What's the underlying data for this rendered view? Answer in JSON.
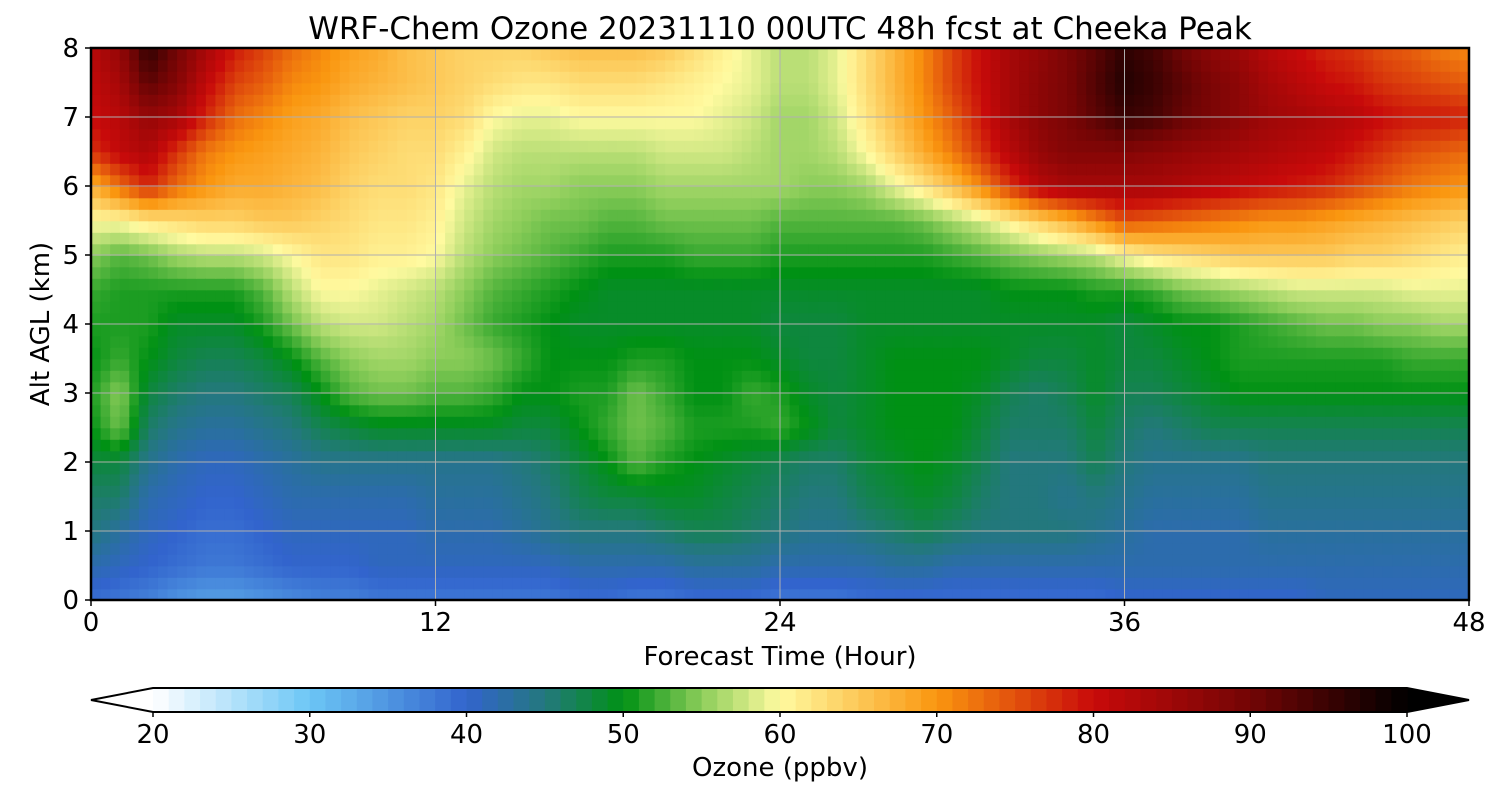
{
  "chart_data": {
    "type": "heatmap",
    "title": "WRF-Chem Ozone  20231110 00UTC 48h fcst at Cheeka Peak",
    "xlabel": "Forecast Time (Hour)",
    "ylabel": "Alt AGL (km)",
    "xlim": [
      0,
      48
    ],
    "ylim": [
      0,
      8
    ],
    "x_ticks": [
      "0",
      "12",
      "24",
      "36",
      "48"
    ],
    "y_ticks": [
      "0",
      "1",
      "2",
      "3",
      "4",
      "5",
      "6",
      "7",
      "8"
    ],
    "grid": true,
    "colorbar": {
      "label": "Ozone  (ppbv)",
      "range": [
        20,
        100
      ],
      "ticks": [
        "20",
        "30",
        "40",
        "50",
        "60",
        "70",
        "80",
        "90",
        "100"
      ],
      "extend": "both"
    },
    "x": [
      0,
      1,
      2,
      3,
      4,
      5,
      6,
      7,
      8,
      9,
      10,
      11,
      12,
      13,
      14,
      15,
      16,
      17,
      18,
      19,
      20,
      21,
      22,
      23,
      24,
      25,
      26,
      27,
      28,
      29,
      30,
      31,
      32,
      33,
      34,
      35,
      36,
      37,
      38,
      39,
      40,
      41,
      42,
      43,
      44,
      45,
      46,
      47,
      48
    ],
    "y": [
      0,
      0.5,
      1,
      1.5,
      2,
      2.5,
      3,
      3.5,
      4,
      4.5,
      5,
      5.5,
      6,
      6.5,
      7,
      7.5,
      8
    ],
    "z_units": "ppbv",
    "z_note": "values estimated from the filled contours, rows = altitude levels (y), columns = forecast hours (x)",
    "z": [
      [
        39,
        38,
        37,
        35,
        34,
        34,
        35,
        36,
        37,
        37,
        38,
        38,
        38,
        38,
        38,
        38,
        38,
        39,
        39,
        38,
        38,
        39,
        39,
        39,
        38,
        38,
        38,
        39,
        39,
        39,
        39,
        39,
        39,
        39,
        39,
        39,
        40,
        40,
        40,
        40,
        40,
        40,
        40,
        41,
        41,
        41,
        41,
        41,
        41
      ],
      [
        42,
        41,
        40,
        39,
        38,
        38,
        39,
        40,
        40,
        40,
        41,
        41,
        41,
        41,
        41,
        41,
        41,
        42,
        42,
        42,
        42,
        43,
        43,
        43,
        42,
        42,
        42,
        42,
        43,
        43,
        42,
        42,
        42,
        42,
        42,
        42,
        42,
        42,
        42,
        42,
        42,
        42,
        42,
        42,
        42,
        42,
        42,
        42,
        42
      ],
      [
        45,
        43,
        41,
        40,
        39,
        39,
        40,
        41,
        41,
        41,
        41,
        41,
        42,
        42,
        42,
        43,
        44,
        45,
        45,
        45,
        46,
        47,
        47,
        46,
        45,
        44,
        44,
        45,
        46,
        47,
        46,
        45,
        45,
        45,
        45,
        44,
        43,
        42,
        42,
        42,
        42,
        43,
        43,
        43,
        43,
        43,
        43,
        43,
        43
      ],
      [
        46,
        46,
        42,
        41,
        40,
        40,
        41,
        42,
        42,
        42,
        42,
        42,
        43,
        43,
        43,
        44,
        45,
        47,
        48,
        48,
        49,
        49,
        48,
        47,
        46,
        45,
        45,
        47,
        48,
        49,
        48,
        46,
        45,
        45,
        44,
        45,
        44,
        43,
        43,
        43,
        43,
        44,
        44,
        44,
        44,
        44,
        44,
        44,
        44
      ],
      [
        48,
        48,
        44,
        42,
        41,
        41,
        42,
        43,
        44,
        44,
        44,
        44,
        44,
        44,
        44,
        45,
        46,
        48,
        50,
        53,
        51,
        50,
        49,
        48,
        47,
        46,
        46,
        48,
        49,
        50,
        49,
        47,
        45,
        45,
        45,
        47,
        45,
        44,
        44,
        44,
        44,
        45,
        45,
        45,
        45,
        45,
        45,
        45,
        45
      ],
      [
        50,
        54,
        46,
        44,
        43,
        43,
        44,
        45,
        47,
        48,
        49,
        49,
        49,
        49,
        49,
        48,
        48,
        50,
        52,
        54,
        53,
        51,
        51,
        51,
        52,
        50,
        48,
        49,
        50,
        50,
        50,
        48,
        46,
        46,
        46,
        48,
        46,
        45,
        46,
        47,
        47,
        47,
        47,
        47,
        47,
        47,
        47,
        47,
        47
      ],
      [
        51,
        55,
        48,
        46,
        45,
        45,
        46,
        47,
        50,
        53,
        54,
        54,
        53,
        53,
        52,
        50,
        50,
        51,
        51,
        54,
        52,
        50,
        50,
        52,
        51,
        49,
        48,
        49,
        50,
        50,
        50,
        49,
        47,
        46,
        47,
        49,
        47,
        47,
        48,
        49,
        50,
        50,
        50,
        50,
        50,
        50,
        50,
        50,
        50
      ],
      [
        50,
        52,
        50,
        48,
        47,
        47,
        48,
        50,
        53,
        55,
        56,
        56,
        55,
        55,
        54,
        52,
        50,
        50,
        50,
        51,
        51,
        50,
        50,
        50,
        49,
        48,
        48,
        49,
        50,
        50,
        50,
        50,
        49,
        48,
        48,
        49,
        48,
        48,
        49,
        50,
        51,
        51,
        51,
        51,
        51,
        51,
        52,
        52,
        52
      ],
      [
        51,
        51,
        51,
        49,
        49,
        49,
        51,
        54,
        57,
        58,
        58,
        57,
        56,
        54,
        52,
        51,
        50,
        49,
        49,
        49,
        49,
        49,
        49,
        49,
        48,
        48,
        48,
        49,
        49,
        49,
        49,
        49,
        49,
        49,
        49,
        49,
        48,
        49,
        50,
        50,
        51,
        52,
        53,
        54,
        54,
        55,
        55,
        56,
        56
      ],
      [
        52,
        51,
        51,
        51,
        51,
        51,
        53,
        57,
        60,
        60,
        59,
        58,
        57,
        55,
        53,
        52,
        51,
        50,
        49,
        49,
        49,
        49,
        49,
        49,
        49,
        49,
        49,
        49,
        49,
        49,
        49,
        49,
        50,
        50,
        50,
        51,
        51,
        52,
        54,
        55,
        56,
        57,
        58,
        58,
        58,
        58,
        59,
        59,
        59
      ],
      [
        55,
        53,
        54,
        56,
        57,
        57,
        58,
        60,
        62,
        62,
        61,
        61,
        60,
        57,
        55,
        54,
        53,
        52,
        51,
        51,
        51,
        52,
        52,
        52,
        51,
        51,
        51,
        51,
        51,
        51,
        52,
        53,
        54,
        55,
        56,
        57,
        60,
        62,
        63,
        64,
        65,
        65,
        65,
        65,
        64,
        64,
        63,
        62,
        61
      ],
      [
        60,
        60,
        62,
        63,
        64,
        64,
        65,
        65,
        64,
        63,
        62,
        62,
        61,
        58,
        56,
        55,
        54,
        54,
        53,
        53,
        54,
        54,
        54,
        54,
        53,
        53,
        53,
        53,
        53,
        54,
        56,
        58,
        61,
        64,
        67,
        71,
        75,
        74,
        73,
        72,
        71,
        70,
        70,
        69,
        68,
        67,
        66,
        65,
        64
      ],
      [
        67,
        73,
        78,
        73,
        70,
        68,
        68,
        67,
        66,
        64,
        63,
        63,
        62,
        59,
        57,
        56,
        56,
        55,
        55,
        55,
        56,
        56,
        56,
        56,
        56,
        55,
        55,
        56,
        59,
        62,
        66,
        71,
        77,
        82,
        84,
        84,
        84,
        84,
        83,
        82,
        81,
        80,
        79,
        78,
        76,
        74,
        72,
        71,
        70
      ],
      [
        77,
        81,
        83,
        77,
        72,
        70,
        69,
        68,
        67,
        65,
        64,
        63,
        63,
        61,
        58,
        57,
        57,
        57,
        57,
        57,
        58,
        58,
        58,
        57,
        56,
        56,
        57,
        60,
        64,
        68,
        72,
        77,
        82,
        86,
        88,
        88,
        88,
        87,
        86,
        85,
        84,
        83,
        82,
        81,
        79,
        77,
        75,
        74,
        73
      ],
      [
        80,
        82,
        86,
        84,
        78,
        73,
        71,
        69,
        68,
        66,
        65,
        64,
        64,
        63,
        60,
        59,
        59,
        60,
        60,
        60,
        60,
        60,
        59,
        58,
        56,
        56,
        58,
        62,
        66,
        70,
        74,
        79,
        84,
        87,
        89,
        92,
        95,
        94,
        91,
        89,
        87,
        85,
        84,
        83,
        82,
        80,
        79,
        79,
        78
      ],
      [
        81,
        84,
        92,
        88,
        81,
        76,
        74,
        71,
        70,
        68,
        67,
        66,
        65,
        64,
        63,
        62,
        62,
        63,
        63,
        63,
        62,
        61,
        60,
        59,
        57,
        57,
        59,
        63,
        67,
        71,
        76,
        80,
        84,
        87,
        89,
        93,
        97,
        95,
        92,
        89,
        87,
        84,
        82,
        80,
        79,
        77,
        76,
        75,
        74
      ],
      [
        82,
        86,
        96,
        90,
        84,
        79,
        76,
        73,
        71,
        69,
        68,
        66,
        65,
        64,
        64,
        64,
        65,
        66,
        66,
        66,
        65,
        63,
        61,
        59,
        57,
        57,
        59,
        63,
        67,
        71,
        76,
        80,
        84,
        86,
        89,
        92,
        96,
        94,
        90,
        87,
        85,
        82,
        80,
        78,
        77,
        75,
        74,
        72,
        71
      ]
    ]
  }
}
